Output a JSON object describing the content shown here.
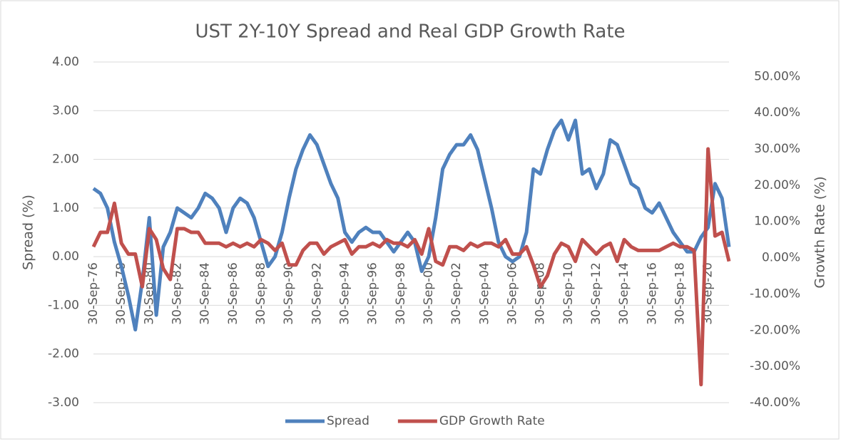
{
  "chart_data": {
    "type": "line",
    "title": "UST 2Y-10Y Spread and Real GDP Growth Rate",
    "y_label": "Spread (%)",
    "y2_label": "Growth Rate (%)",
    "categories": [
      "30-Sep-76",
      null,
      null,
      null,
      "30-Sep-78",
      null,
      null,
      null,
      "30-Sep-80",
      null,
      null,
      null,
      "30-Sep-82",
      null,
      null,
      null,
      "30-Sep-84",
      null,
      null,
      null,
      "30-Sep-86",
      null,
      null,
      null,
      "30-Sep-88",
      null,
      null,
      null,
      "30-Sep-90",
      null,
      null,
      null,
      "30-Sep-92",
      null,
      null,
      null,
      "30-Sep-94",
      null,
      null,
      null,
      "30-Sep-96",
      null,
      null,
      null,
      "30-Sep-98",
      null,
      null,
      null,
      "30-Sep-00",
      null,
      null,
      null,
      "30-Sep-02",
      null,
      null,
      null,
      "30-Sep-04",
      null,
      null,
      null,
      "30-Sep-06",
      null,
      null,
      null,
      "30-Sep-08",
      null,
      null,
      null,
      "30-Sep-10",
      null,
      null,
      null,
      "30-Sep-12",
      null,
      null,
      null,
      "30-Sep-14",
      null,
      null,
      null,
      "30-Sep-16",
      null,
      null,
      null,
      "30-Sep-18",
      null,
      null,
      null,
      "30-Sep-20",
      null,
      null,
      null
    ],
    "series": [
      {
        "name": "Spread",
        "color": "#4f81bd",
        "values": [
          1.4,
          1.3,
          1.0,
          0.3,
          -0.2,
          -0.8,
          -1.5,
          -0.5,
          0.8,
          -1.2,
          0.2,
          0.5,
          1.0,
          0.9,
          0.8,
          1.0,
          1.3,
          1.2,
          1.0,
          0.5,
          1.0,
          1.2,
          1.1,
          0.8,
          0.3,
          -0.2,
          0.0,
          0.5,
          1.2,
          1.8,
          2.2,
          2.5,
          2.3,
          1.9,
          1.5,
          1.2,
          0.5,
          0.3,
          0.5,
          0.6,
          0.5,
          0.5,
          0.3,
          0.1,
          0.3,
          0.5,
          0.3,
          -0.3,
          0.0,
          0.8,
          1.8,
          2.1,
          2.3,
          2.3,
          2.5,
          2.2,
          1.6,
          1.0,
          0.3,
          0.0,
          -0.1,
          0.0,
          0.5,
          1.8,
          1.7,
          2.2,
          2.6,
          2.8,
          2.4,
          2.8,
          1.7,
          1.8,
          1.4,
          1.7,
          2.4,
          2.3,
          1.9,
          1.5,
          1.4,
          1.0,
          0.9,
          1.1,
          0.8,
          0.5,
          0.3,
          0.1,
          0.1,
          0.4,
          0.6,
          1.5,
          1.2,
          0.2
        ]
      },
      {
        "name": "GDP Growth Rate",
        "color": "#c0504d",
        "axis": "y2",
        "values": [
          3,
          7,
          7,
          15,
          4,
          1,
          1,
          -8,
          8,
          5,
          -3,
          -6,
          8,
          8,
          7,
          7,
          4,
          4,
          4,
          3,
          4,
          3,
          4,
          3,
          5,
          4,
          2,
          4,
          -2,
          -2,
          2,
          4,
          4,
          1,
          3,
          4,
          5,
          1,
          3,
          3,
          4,
          3,
          5,
          4,
          4,
          3,
          5,
          1,
          8,
          -1,
          -2,
          3,
          3,
          2,
          4,
          3,
          4,
          4,
          3,
          5,
          1,
          1,
          3,
          -2,
          -8,
          -5,
          1,
          4,
          3,
          -1,
          5,
          3,
          1,
          3,
          4,
          -1,
          5,
          3,
          2,
          2,
          2,
          2,
          3,
          4,
          3,
          3,
          2,
          -35,
          30,
          6,
          7,
          -1
        ]
      }
    ],
    "ylim": [
      -3,
      4
    ],
    "yticks": [
      {
        "value": -3,
        "label": "-3.00"
      },
      {
        "value": -2,
        "label": "-2.00"
      },
      {
        "value": -1,
        "label": "-1.00"
      },
      {
        "value": 0,
        "label": "0.00"
      },
      {
        "value": 1,
        "label": "1.00"
      },
      {
        "value": 2,
        "label": "2.00"
      },
      {
        "value": 3,
        "label": "3.00"
      },
      {
        "value": 4,
        "label": "4.00"
      }
    ],
    "y2lim": [
      -40,
      54
    ],
    "y2ticks": [
      {
        "value": -40,
        "label": "-40.00%"
      },
      {
        "value": -30,
        "label": "-30.00%"
      },
      {
        "value": -20,
        "label": "-20.00%"
      },
      {
        "value": -10,
        "label": "-10.00%"
      },
      {
        "value": 0,
        "label": "0.00%"
      },
      {
        "value": 10,
        "label": "10.00%"
      },
      {
        "value": 20,
        "label": "20.00%"
      },
      {
        "value": 30,
        "label": "30.00%"
      },
      {
        "value": 40,
        "label": "40.00%"
      },
      {
        "value": 50,
        "label": "50.00%"
      }
    ],
    "grid": true,
    "legend": "bottom"
  }
}
